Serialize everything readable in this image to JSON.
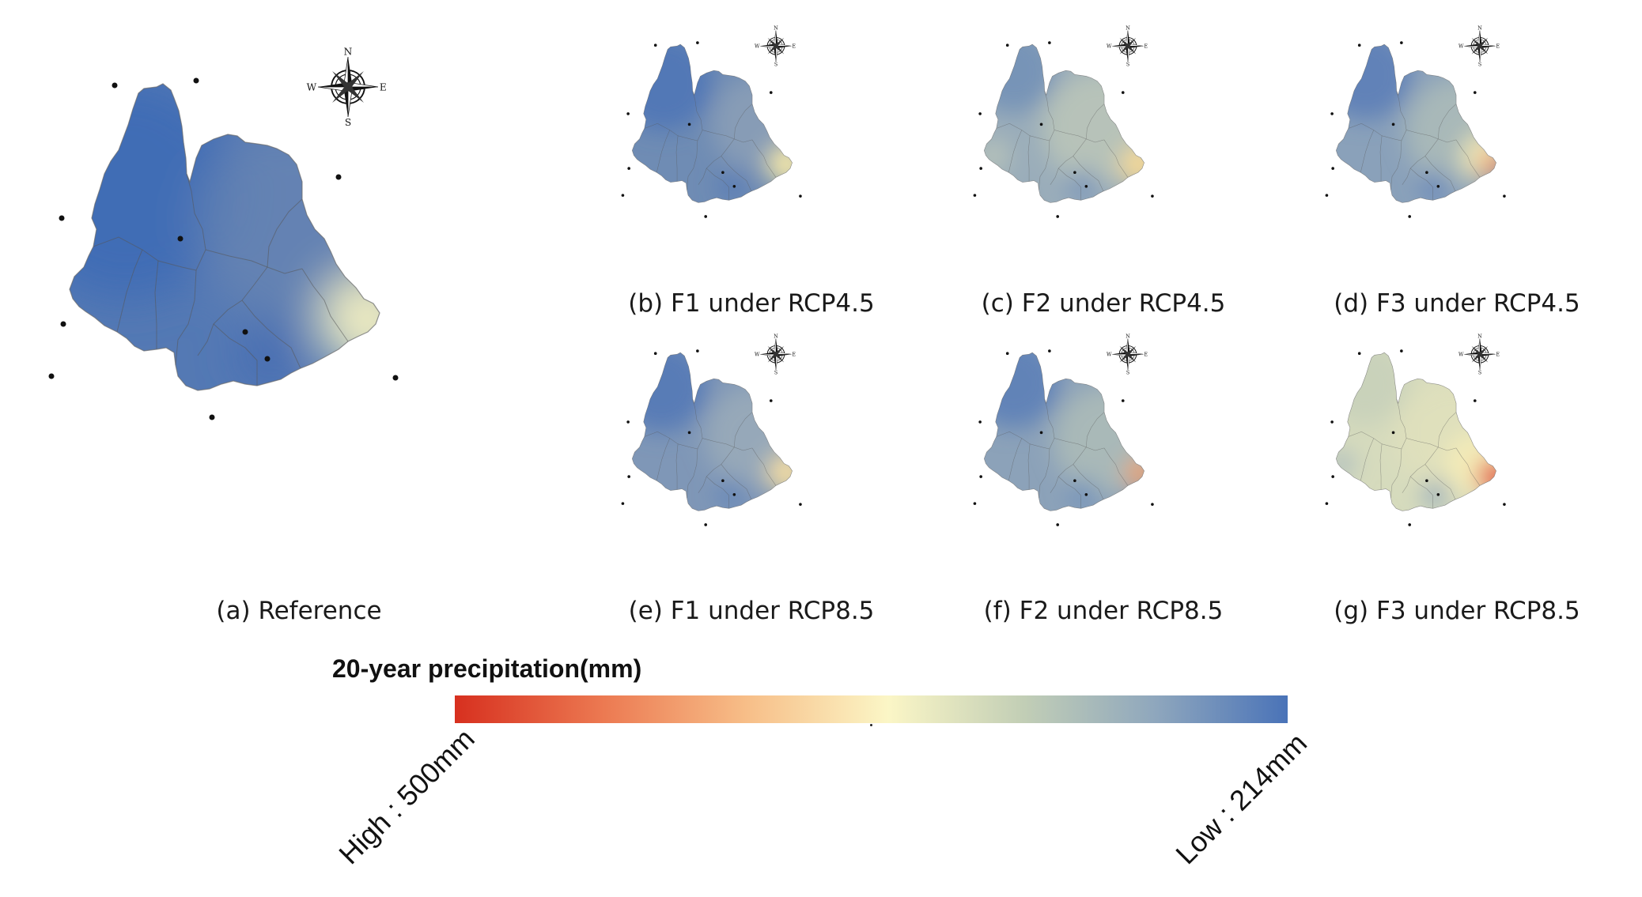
{
  "panels": [
    {
      "id": "a",
      "caption": "(a) Reference",
      "map_style": "reference"
    },
    {
      "id": "b",
      "caption": "(b) F1 under RCP4.5",
      "map_style": "b"
    },
    {
      "id": "c",
      "caption": "(c) F2 under RCP4.5",
      "map_style": "c"
    },
    {
      "id": "d",
      "caption": "(d) F3 under RCP4.5",
      "map_style": "d"
    },
    {
      "id": "e",
      "caption": "(e) F1 under RCP8.5",
      "map_style": "e"
    },
    {
      "id": "f",
      "caption": "(f) F2 under RCP8.5",
      "map_style": "f"
    },
    {
      "id": "g",
      "caption": "(g) F3 under RCP8.5",
      "map_style": "g"
    }
  ],
  "compass_labels": {
    "n": "N",
    "s": "S",
    "e": "E",
    "w": "W"
  },
  "legend": {
    "title": "20-year precipitation(mm)",
    "high_label": "High : 500mm",
    "low_label": "Low : 214mm",
    "colors": [
      "#d7301f",
      "#ec7a52",
      "#f7be88",
      "#fbf6c6",
      "#c3cfb6",
      "#8fa7bd",
      "#4a73b8"
    ]
  }
}
